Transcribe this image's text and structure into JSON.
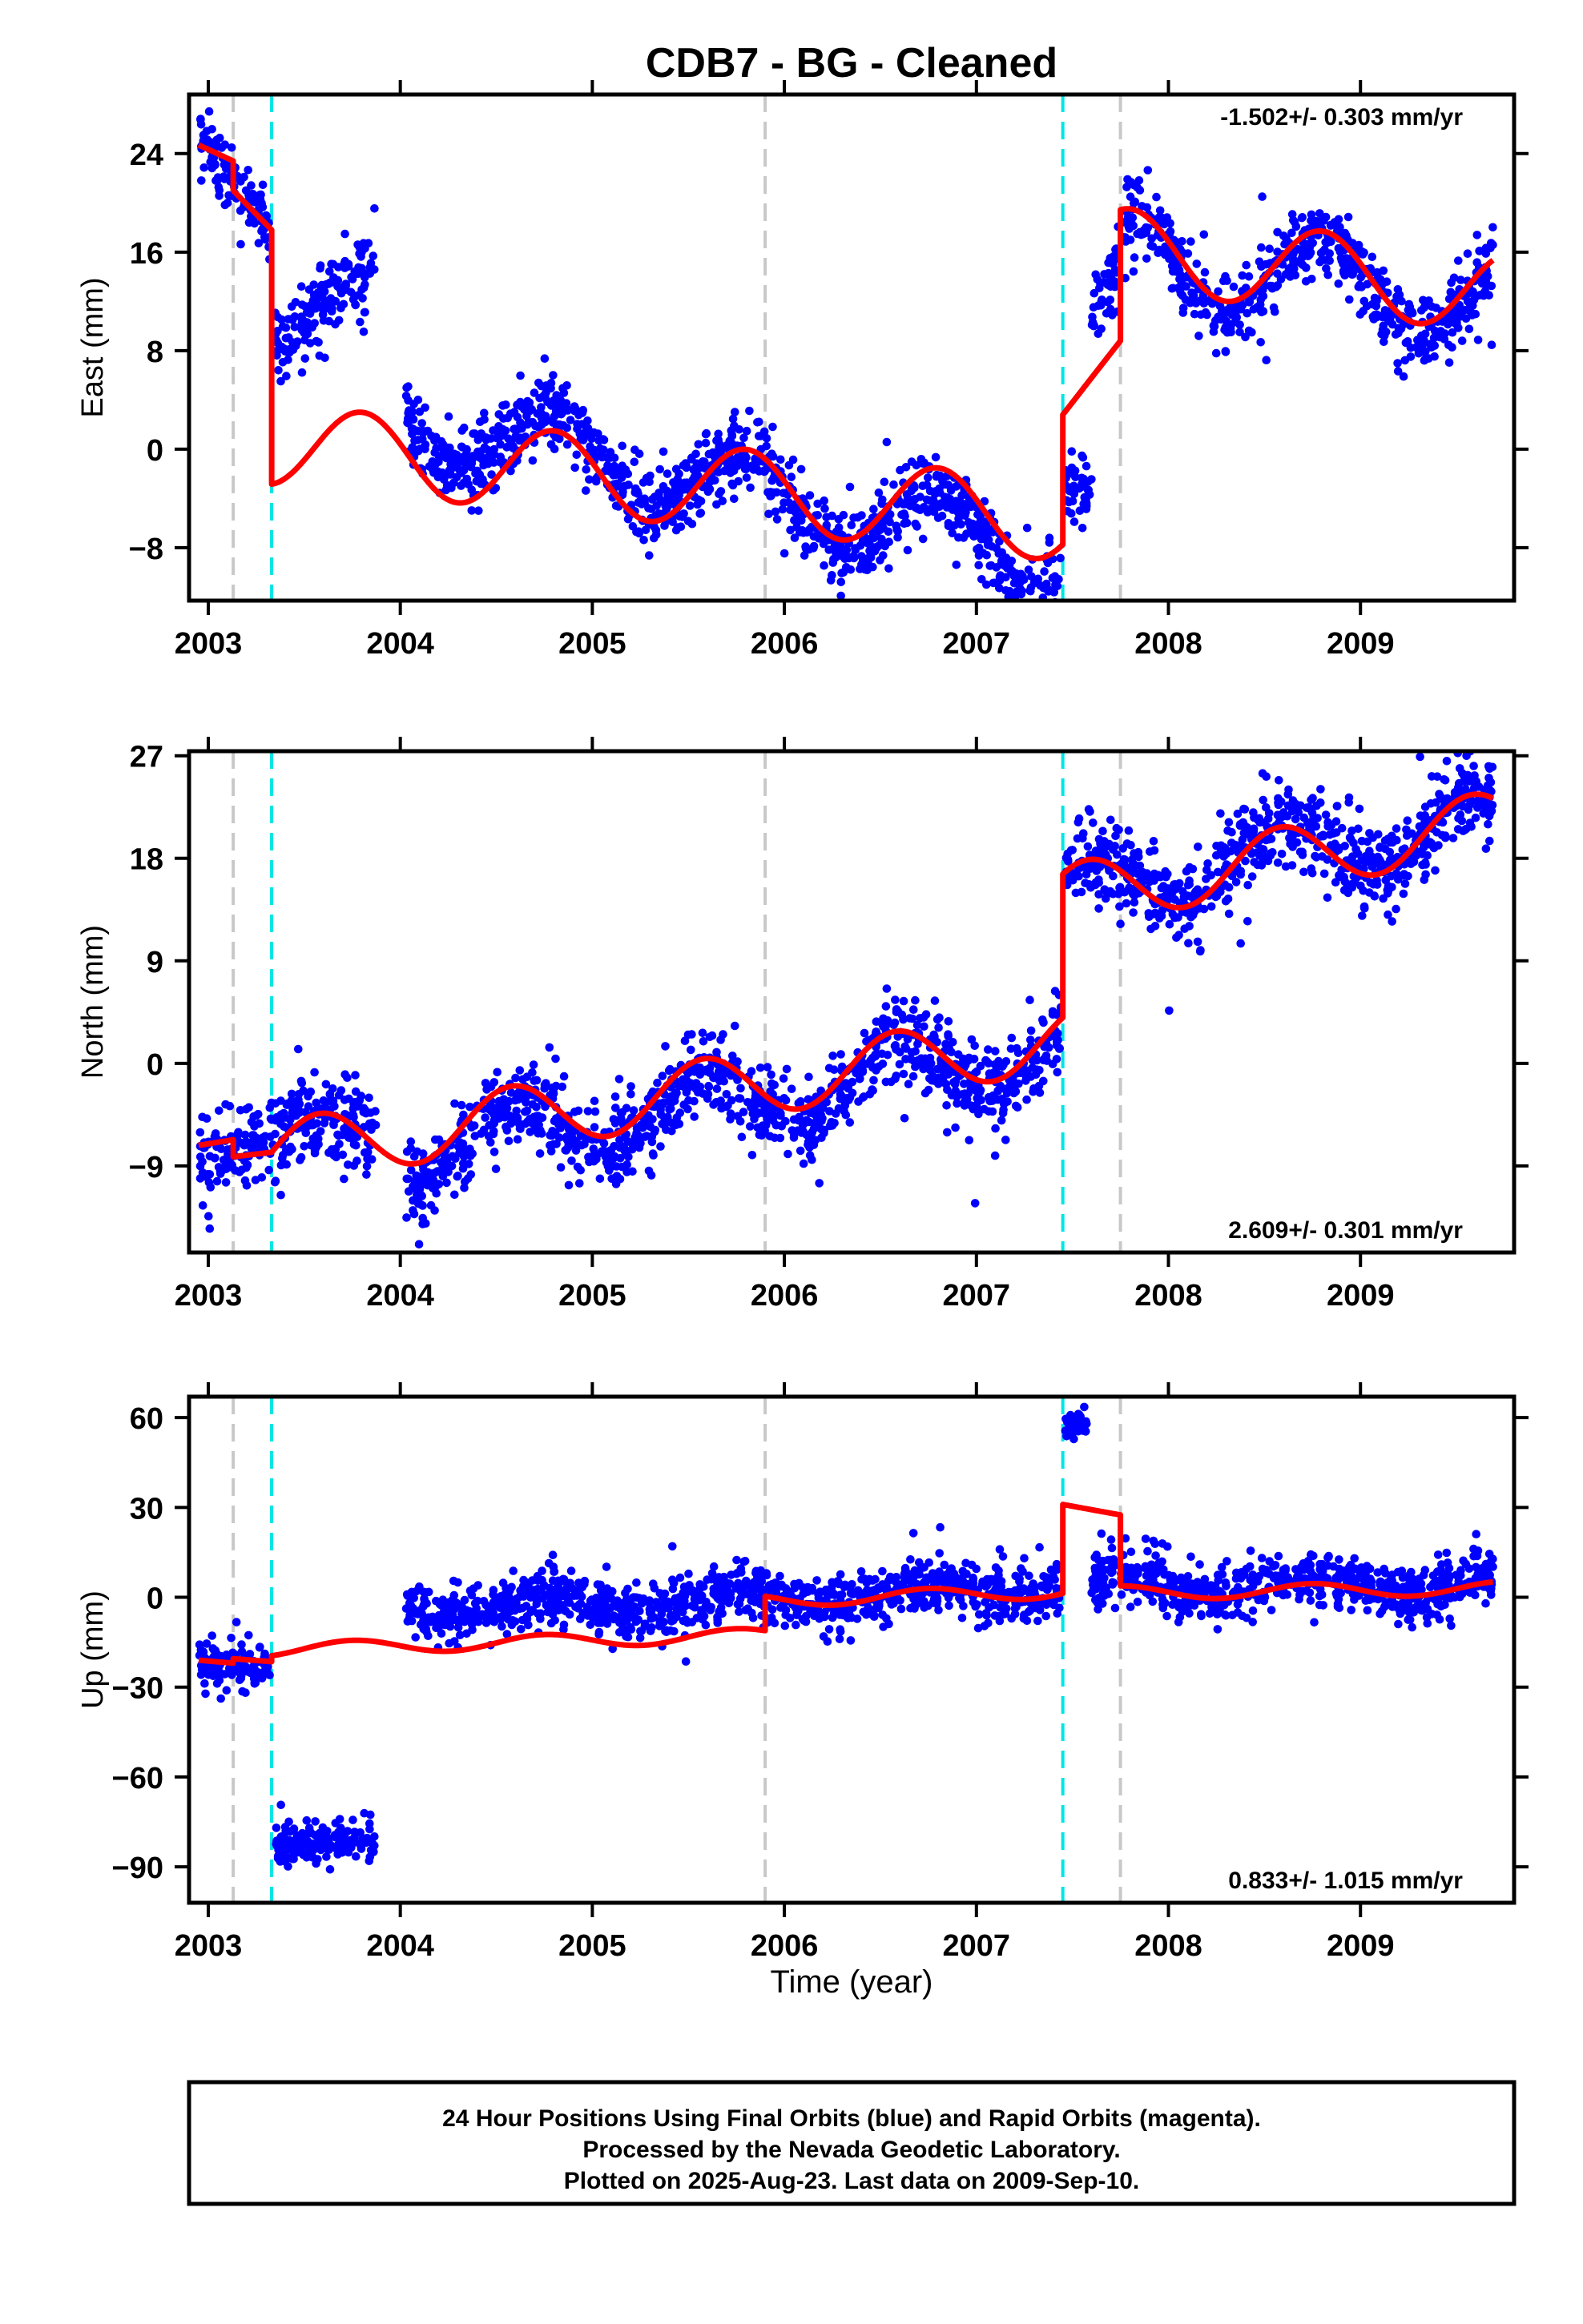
{
  "title": "CDB7  - BG - Cleaned",
  "x_axis_label": "Time (year)",
  "footer": {
    "lines": [
      "24 Hour Positions Using Final Orbits (blue) and Rapid Orbits (magenta).",
      "Processed by the Nevada Geodetic Laboratory.",
      "Plotted on 2025-Aug-23. Last data on 2009-Sep-10."
    ]
  },
  "colors": {
    "data_points": "#0000ff",
    "model_fit": "#ff0000",
    "equipment_change": "#c8c8c8",
    "earthquake": "#00e5e5"
  },
  "chart_data": [
    {
      "type": "scatter",
      "component": "east",
      "ylabel": "East (mm)",
      "rate_label": "-1.502+/- 0.303 mm/yr",
      "rate_position": "top-right",
      "xlim": [
        2002.9,
        2009.8
      ],
      "ylim": [
        -12.3,
        28.8
      ],
      "x_ticks": [
        2003,
        2004,
        2005,
        2006,
        2007,
        2008,
        2009
      ],
      "y_ticks": [
        -8,
        0,
        8,
        16,
        24
      ],
      "gray_dashed_lines_years": [
        2003.13,
        2005.9,
        2007.75
      ],
      "cyan_dashed_lines_years": [
        2003.33,
        2007.45
      ],
      "observations_segments": [
        {
          "from": 2002.95,
          "to": 2003.32,
          "value_start": 25.0,
          "value_end": 18.0,
          "scatter": 1.4
        },
        {
          "from": 2003.34,
          "to": 2003.87,
          "value_start": 8.5,
          "value_end": 15.5,
          "scatter": 1.4
        },
        {
          "from": 2004.03,
          "to": 2007.44,
          "value_start": 2.5,
          "value_end": -8.8,
          "amplitude": 3.0,
          "peak_phase": 0.8,
          "scatter": 1.5
        },
        {
          "from": 2007.46,
          "to": 2007.6,
          "value_start": -3.5,
          "value_end": -2.5,
          "scatter": 1.3
        },
        {
          "from": 2007.6,
          "to": 2007.74,
          "value_start": 11.5,
          "value_end": 14.5,
          "scatter": 1.4
        },
        {
          "from": 2007.76,
          "to": 2009.69,
          "value_start": 15.5,
          "value_end": 12.3,
          "amplitude": 3.5,
          "peak_phase": 0.8,
          "scatter": 1.5
        }
      ],
      "model_segments": [
        {
          "from": 2002.95,
          "to": 2003.13,
          "value_start": 24.7,
          "value_end": 23.4
        },
        {
          "from": 2003.13,
          "to": 2003.33,
          "value_start": 21.0,
          "value_end": 17.8
        },
        {
          "from": 2003.33,
          "to": 2007.45,
          "value_start": 0.4,
          "value_end": -5.8,
          "amplitude": 3.3,
          "peak_phase": 0.8
        },
        {
          "from": 2007.45,
          "to": 2007.75,
          "value_start": 2.8,
          "value_end": 8.8
        },
        {
          "from": 2007.75,
          "to": 2009.69,
          "value_start": 16.3,
          "value_end": 12.8,
          "amplitude": 3.3,
          "peak_phase": 0.8
        }
      ]
    },
    {
      "type": "scatter",
      "component": "north",
      "ylabel": "North (mm)",
      "rate_label": "2.609+/- 0.301 mm/yr",
      "rate_position": "bottom-right",
      "xlim": [
        2002.9,
        2009.8
      ],
      "ylim": [
        -16.6,
        27.4
      ],
      "x_ticks": [
        2003,
        2004,
        2005,
        2006,
        2007,
        2008,
        2009
      ],
      "y_ticks": [
        -9,
        0,
        9,
        18,
        27
      ],
      "gray_dashed_lines_years": [
        2003.13,
        2005.9,
        2007.75
      ],
      "cyan_dashed_lines_years": [
        2003.33,
        2007.45
      ],
      "observations_segments": [
        {
          "from": 2002.95,
          "to": 2003.88,
          "value_start": -7.0,
          "value_end": -5.5,
          "amplitude": 1.5,
          "peak_phase": 0.55,
          "scatter": 2.0
        },
        {
          "from": 2004.03,
          "to": 2007.44,
          "value_start": -7.8,
          "value_end": 1.5,
          "amplitude": 2.7,
          "peak_phase": 0.58,
          "scatter": 1.8
        },
        {
          "from": 2007.46,
          "to": 2009.69,
          "value_start": 15.0,
          "value_end": 21.5,
          "amplitude": 2.7,
          "peak_phase": 0.58,
          "scatter": 1.9
        }
      ],
      "model_segments": [
        {
          "from": 2002.95,
          "to": 2003.13,
          "value_start": -7.2,
          "value_end": -6.7
        },
        {
          "from": 2003.13,
          "to": 2003.33,
          "value_start": -8.2,
          "value_end": -7.8
        },
        {
          "from": 2003.33,
          "to": 2007.45,
          "value_start": -7.8,
          "value_end": 2.1,
          "amplitude": 2.8,
          "peak_phase": 0.58
        },
        {
          "from": 2007.45,
          "to": 2009.69,
          "value_start": 14.7,
          "value_end": 21.1,
          "amplitude": 2.8,
          "peak_phase": 0.58
        }
      ]
    },
    {
      "type": "scatter",
      "component": "up",
      "ylabel": "Up (mm)",
      "rate_label": "0.833+/- 1.015 mm/yr",
      "rate_position": "bottom-right",
      "xlim": [
        2002.9,
        2009.8
      ],
      "ylim": [
        -102,
        67
      ],
      "x_ticks": [
        2003,
        2004,
        2005,
        2006,
        2007,
        2008,
        2009
      ],
      "y_ticks": [
        -90,
        -60,
        -30,
        0,
        30,
        60
      ],
      "gray_dashed_lines_years": [
        2003.13,
        2005.9,
        2007.75
      ],
      "cyan_dashed_lines_years": [
        2003.33,
        2007.45
      ],
      "observations_segments": [
        {
          "from": 2002.95,
          "to": 2003.32,
          "value_start": -21.0,
          "value_end": -22.0,
          "scatter": 3.5
        },
        {
          "from": 2003.35,
          "to": 2003.87,
          "value_start": -82.0,
          "value_end": -82.0,
          "scatter": 3.5
        },
        {
          "from": 2004.03,
          "to": 2007.44,
          "value_start": -3.5,
          "value_end": 2.0,
          "amplitude": 3.0,
          "peak_phase": 0.75,
          "scatter": 4.5
        },
        {
          "from": 2007.46,
          "to": 2007.58,
          "value_start": 57.0,
          "value_end": 58.5,
          "scatter": 2.2
        },
        {
          "from": 2007.6,
          "to": 2009.69,
          "value_start": 3.5,
          "value_end": 4.0,
          "amplitude": 3.0,
          "peak_phase": 0.75,
          "scatter": 4.5
        }
      ],
      "model_segments": [
        {
          "from": 2002.95,
          "to": 2003.13,
          "value_start": -21.0,
          "value_end": -22.0
        },
        {
          "from": 2003.13,
          "to": 2003.33,
          "value_start": -20.5,
          "value_end": -21.5
        },
        {
          "from": 2003.33,
          "to": 2005.9,
          "value_start": -17.5,
          "value_end": -12.5,
          "amplitude": 2.3,
          "peak_phase": 0.75
        },
        {
          "from": 2005.9,
          "to": 2007.45,
          "value_start": -1.0,
          "value_end": 2.0,
          "amplitude": 2.3,
          "peak_phase": 0.75
        },
        {
          "from": 2007.45,
          "to": 2007.75,
          "value_start": 31.0,
          "value_end": 27.5
        },
        {
          "from": 2007.75,
          "to": 2009.69,
          "value_start": 1.5,
          "value_end": 3.0,
          "amplitude": 2.3,
          "peak_phase": 0.75
        }
      ]
    }
  ]
}
